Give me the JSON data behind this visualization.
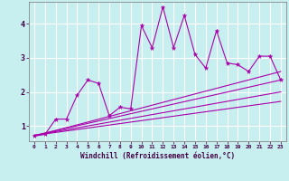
{
  "xlabel": "Windchill (Refroidissement éolien,°C)",
  "background_color": "#c8eff0",
  "grid_color": "#ffffff",
  "line_color": "#aa00aa",
  "xlim": [
    -0.5,
    23.5
  ],
  "ylim": [
    0.55,
    4.65
  ],
  "xticks": [
    0,
    1,
    2,
    3,
    4,
    5,
    6,
    7,
    8,
    9,
    10,
    11,
    12,
    13,
    14,
    15,
    16,
    17,
    18,
    19,
    20,
    21,
    22,
    23
  ],
  "yticks": [
    1,
    2,
    3,
    4
  ],
  "series1_x": [
    0,
    1,
    2,
    3,
    4,
    5,
    6,
    7,
    8,
    9,
    10,
    11,
    12,
    13,
    14,
    15,
    16,
    17,
    18,
    19,
    20,
    21,
    22,
    23
  ],
  "series1_y": [
    0.7,
    0.75,
    1.2,
    1.2,
    1.9,
    2.35,
    2.25,
    1.3,
    1.55,
    1.5,
    3.95,
    3.3,
    4.5,
    3.3,
    4.25,
    3.1,
    2.7,
    3.8,
    2.85,
    2.8,
    2.6,
    3.05,
    3.05,
    2.35
  ],
  "trend1_x": [
    0,
    23
  ],
  "trend1_y": [
    0.72,
    2.35
  ],
  "trend2_x": [
    0,
    23
  ],
  "trend2_y": [
    0.72,
    2.0
  ],
  "trend3_x": [
    0,
    23
  ],
  "trend3_y": [
    0.72,
    1.72
  ],
  "trend4_x": [
    0,
    23
  ],
  "trend4_y": [
    0.7,
    2.6
  ]
}
